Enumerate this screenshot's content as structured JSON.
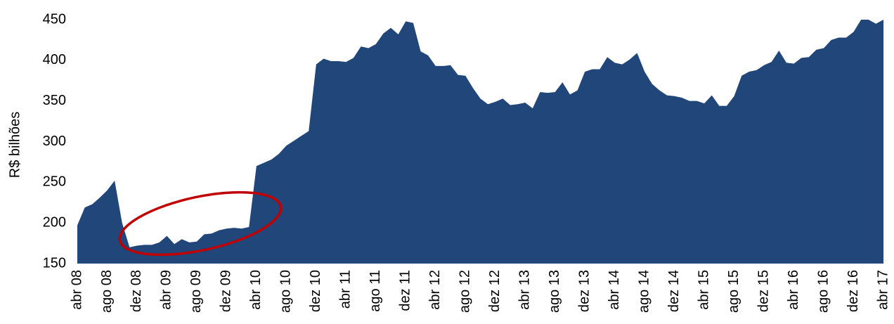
{
  "chart_data": {
    "type": "area",
    "ylabel": "R$ bilhões",
    "categories": [
      "abr 08",
      null,
      null,
      null,
      "ago 08",
      null,
      null,
      null,
      "dez 08",
      null,
      null,
      null,
      "abr 09",
      null,
      null,
      null,
      "ago 09",
      null,
      null,
      null,
      "dez 09",
      null,
      null,
      null,
      "abr 10",
      null,
      null,
      null,
      "ago 10",
      null,
      null,
      null,
      "dez 10",
      null,
      null,
      null,
      "abr 11",
      null,
      null,
      null,
      "ago 11",
      null,
      null,
      null,
      "dez 11",
      null,
      null,
      null,
      "abr 12",
      null,
      null,
      null,
      "ago 12",
      null,
      null,
      null,
      "dez 12",
      null,
      null,
      null,
      "abr 13",
      null,
      null,
      null,
      "ago 13",
      null,
      null,
      null,
      "dez 13",
      null,
      null,
      null,
      "abr 14",
      null,
      null,
      null,
      "ago 14",
      null,
      null,
      null,
      "dez 14",
      null,
      null,
      null,
      "abr 15",
      null,
      null,
      null,
      "ago 15",
      null,
      null,
      null,
      "dez 15",
      null,
      null,
      null,
      "abr 16",
      null,
      null,
      null,
      "ago 16",
      null,
      null,
      null,
      "dez 16",
      null,
      null,
      null,
      "abr 17"
    ],
    "values": [
      197,
      219,
      223,
      231,
      240,
      252,
      200,
      170,
      172,
      173,
      173,
      176,
      184,
      174,
      180,
      176,
      177,
      186,
      187,
      191,
      193,
      194,
      193,
      195,
      270,
      274,
      278,
      285,
      295,
      301,
      307,
      313,
      395,
      402,
      399,
      399,
      398,
      403,
      417,
      415,
      420,
      433,
      440,
      432,
      448,
      446,
      411,
      406,
      393,
      393,
      394,
      382,
      381,
      366,
      353,
      346,
      349,
      353,
      345,
      346,
      348,
      341,
      361,
      360,
      361,
      373,
      358,
      363,
      386,
      389,
      389,
      404,
      397,
      395,
      401,
      409,
      386,
      371,
      363,
      357,
      356,
      354,
      350,
      350,
      347,
      357,
      344,
      344,
      356,
      381,
      386,
      388,
      394,
      398,
      412,
      397,
      396,
      403,
      404,
      413,
      415,
      425,
      428,
      428,
      435,
      450,
      450,
      445,
      450
    ],
    "color": "#21467a",
    "ylim": [
      150,
      450
    ],
    "yticks": [
      150,
      200,
      250,
      300,
      350,
      400,
      450
    ],
    "grid": false
  }
}
